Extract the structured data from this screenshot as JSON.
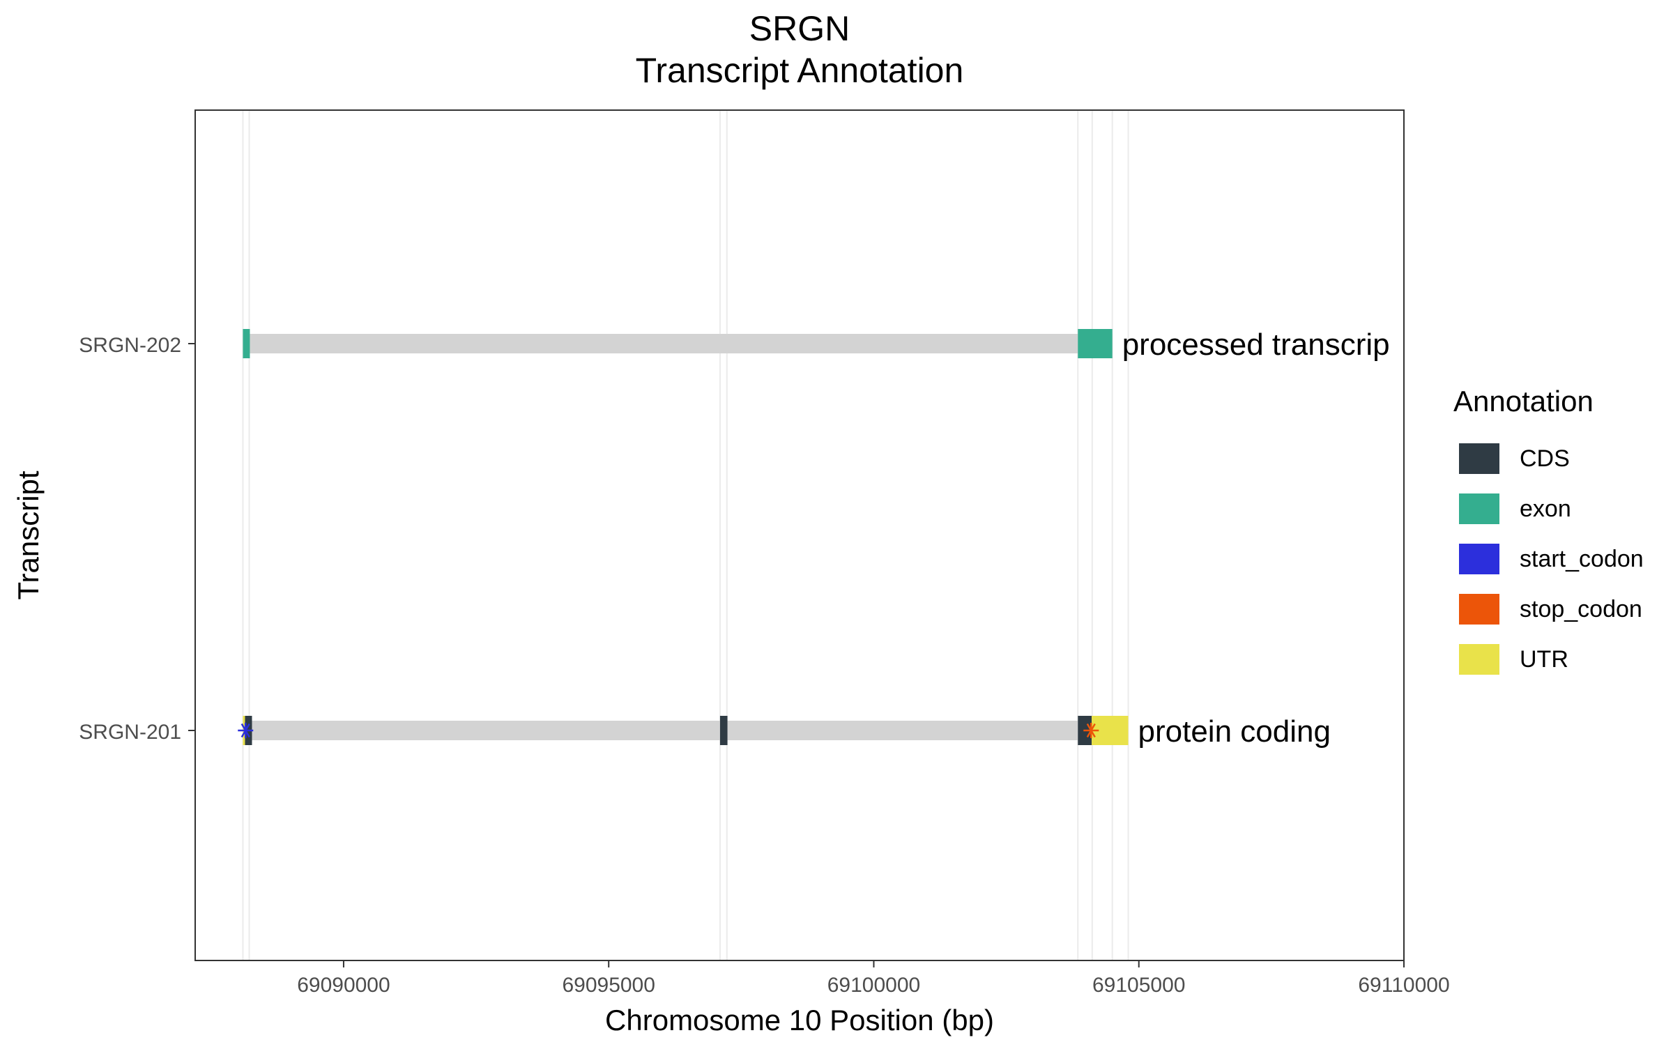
{
  "chart_data": {
    "type": "gene-track",
    "title": "SRGN",
    "subtitle": "Transcript Annotation",
    "xlabel": "Chromosome 10 Position (bp)",
    "ylabel": "Transcript",
    "xlim": [
      69087200,
      69110000
    ],
    "x_ticks": [
      69090000,
      69095000,
      69100000,
      69105000,
      69110000
    ],
    "x_tick_labels": [
      "69090000",
      "69095000",
      "69100000",
      "69105000",
      "69110000"
    ],
    "legend": {
      "title": "Annotation",
      "position": "right",
      "items": [
        {
          "label": "CDS",
          "color": "#2f3b44"
        },
        {
          "label": "exon",
          "color": "#34ae8f"
        },
        {
          "label": "start_codon",
          "color": "#2c2fdc"
        },
        {
          "label": "stop_codon",
          "color": "#ec5509"
        },
        {
          "label": "UTR",
          "color": "#e9e24a"
        }
      ]
    },
    "grid": {
      "horizontal": false,
      "vertical_feature_boundaries": [
        69088100,
        69088220,
        69097100,
        69097230,
        69103850,
        69104120,
        69104500,
        69104800
      ]
    },
    "intron_color": "#d3d3d3",
    "transcripts": [
      {
        "name": "SRGN-202",
        "biotype_label": "processed transcrip",
        "span": [
          69088100,
          69104500
        ],
        "features": [
          {
            "type": "exon",
            "start": 69088100,
            "end": 69088230
          },
          {
            "type": "exon",
            "start": 69103850,
            "end": 69104500
          }
        ],
        "codons": []
      },
      {
        "name": "SRGN-201",
        "biotype_label": "protein coding",
        "span": [
          69088100,
          69104800
        ],
        "features": [
          {
            "type": "UTR",
            "start": 69088100,
            "end": 69088140
          },
          {
            "type": "CDS",
            "start": 69088140,
            "end": 69088230
          },
          {
            "type": "CDS",
            "start": 69097100,
            "end": 69097240
          },
          {
            "type": "CDS",
            "start": 69103850,
            "end": 69104110
          },
          {
            "type": "UTR",
            "start": 69104110,
            "end": 69104800
          }
        ],
        "codons": [
          {
            "type": "start_codon",
            "position": 69088150
          },
          {
            "type": "stop_codon",
            "position": 69104100
          }
        ]
      }
    ]
  }
}
